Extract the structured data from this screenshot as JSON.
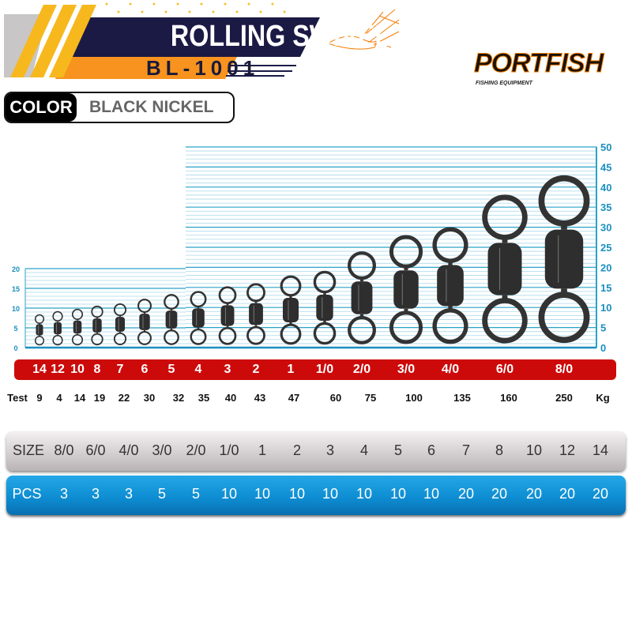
{
  "header": {
    "title": "ROLLING SWIVEL",
    "code": "BL-1001"
  },
  "brand": {
    "name": "PORTFISH",
    "tagline": "FISHING EQUIPMENT"
  },
  "color": {
    "label": "COLOR",
    "value": "BLACK NICKEL"
  },
  "scale": {
    "left_ticks": [
      "0",
      "5",
      "10",
      "15",
      "20"
    ],
    "right_ticks": [
      "0",
      "5",
      "10",
      "15",
      "20",
      "25",
      "30",
      "35",
      "40",
      "45",
      "50"
    ]
  },
  "swivel_sizes": [
    "14",
    "12",
    "10",
    "8",
    "7",
    "6",
    "5",
    "4",
    "3",
    "2",
    "1",
    "1/0",
    "2/0",
    "3/0",
    "4/0",
    "6/0",
    "8/0"
  ],
  "test": {
    "label": "Test",
    "unit": "Kg",
    "values": [
      "9",
      "4",
      "14",
      "19",
      "22",
      "30",
      "32",
      "35",
      "40",
      "43",
      "47",
      "60",
      "75",
      "100",
      "135",
      "160",
      "250"
    ]
  },
  "table": {
    "size_label": "SIZE",
    "sizes": [
      "8/0",
      "6/0",
      "4/0",
      "3/0",
      "2/0",
      "1/0",
      "1",
      "2",
      "3",
      "4",
      "5",
      "6",
      "7",
      "8",
      "10",
      "12",
      "14"
    ],
    "pcs_label": "PCS",
    "pcs": [
      "3",
      "3",
      "3",
      "5",
      "5",
      "10",
      "10",
      "10",
      "10",
      "10",
      "10",
      "10",
      "20",
      "20",
      "20",
      "20",
      "20"
    ]
  },
  "colors": {
    "accent": "#f7a21b",
    "navy": "#1b1a45",
    "red": "#cc0a0a",
    "grid": "#2aa3c8",
    "pcs_blue": "#0d8bd0"
  }
}
